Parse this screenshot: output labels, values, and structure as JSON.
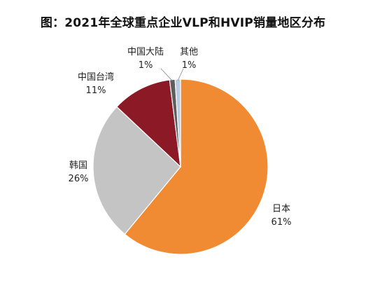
{
  "chart_data": {
    "type": "pie",
    "title": "图：2021年全球重点企业VLP和HVIP销量地区分布",
    "slices": [
      {
        "label": "日本",
        "value": 61,
        "value_label": "61%",
        "color": "#F08A33"
      },
      {
        "label": "韩国",
        "value": 26,
        "value_label": "26%",
        "color": "#C4C4C4"
      },
      {
        "label": "中国台湾",
        "value": 11,
        "value_label": "11%",
        "color": "#8B1A26"
      },
      {
        "label": "中国大陆",
        "value": 1,
        "value_label": "1%",
        "color": "#5E5E5E"
      },
      {
        "label": "其他",
        "value": 1,
        "value_label": "1%",
        "color": "#B8CCE4"
      }
    ],
    "legend": false
  }
}
